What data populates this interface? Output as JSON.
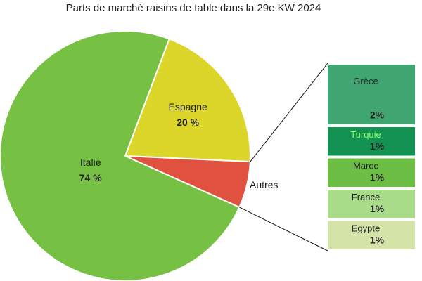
{
  "chart_data": {
    "type": "pie-of-bar",
    "title": "Parts de marché raisins de table dans la 29e KW 2024",
    "categories": [
      "Italie",
      "Espagne",
      "Autres"
    ],
    "values": [
      74,
      20,
      6
    ],
    "value_labels": [
      "74 %",
      "20 %",
      null
    ],
    "colors": [
      "#76c043",
      "#dcd52a",
      "#e0513f"
    ],
    "breakdown": {
      "categories": [
        "Grèce",
        "Turquie",
        "Maroc",
        "France",
        "Egypte"
      ],
      "values": [
        2,
        1,
        1,
        1,
        1
      ],
      "value_labels": [
        "2%",
        "1%",
        "1%",
        "1%",
        "1%"
      ],
      "colors": [
        "#3fa672",
        "#129150",
        "#6cbe45",
        "#a8dc88",
        "#d4e3a8"
      ]
    }
  }
}
